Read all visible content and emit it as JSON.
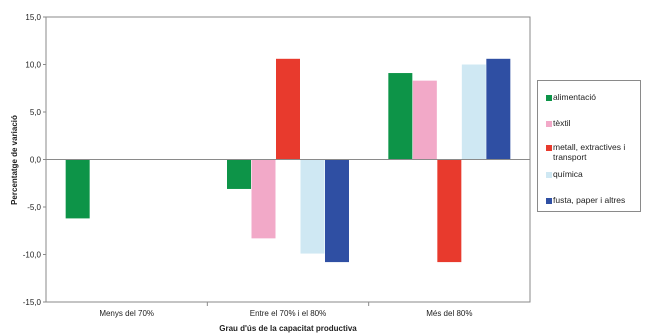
{
  "chart_data": {
    "type": "bar",
    "categories": [
      "Menys del 70%",
      "Entre el 70% i el 80%",
      "Més del 80%"
    ],
    "series": [
      {
        "name": "alimentació",
        "color": "#0d9448",
        "values": [
          -6.2,
          -3.1,
          9.1
        ]
      },
      {
        "name": "tèxtil",
        "color": "#f2a9c8",
        "values": [
          null,
          -8.3,
          8.3
        ]
      },
      {
        "name": "metall, extractives i transport",
        "color": "#e83a2d",
        "values": [
          null,
          10.6,
          -10.8
        ]
      },
      {
        "name": "química",
        "color": "#cfe8f3",
        "values": [
          null,
          -9.9,
          10.0
        ]
      },
      {
        "name": "fusta, paper i altres",
        "color": "#2f4fa3",
        "values": [
          null,
          -10.8,
          10.6
        ]
      }
    ],
    "yticks": [
      "-15,0",
      "-10,0",
      "-5,0",
      "0,0",
      "5,0",
      "10,0",
      "15,0"
    ],
    "ylim": [
      -15,
      15
    ],
    "xlabel": "Grau d'ús de la capacitat productiva",
    "ylabel": "Percentatge de variació",
    "legend_position": "right",
    "grid": false
  }
}
